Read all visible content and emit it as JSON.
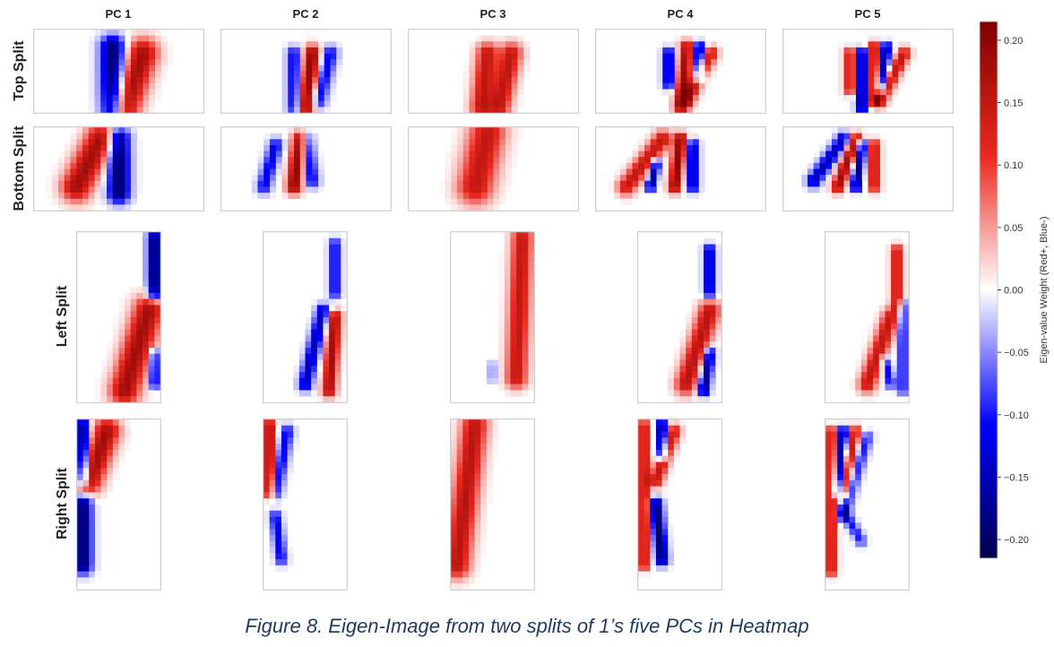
{
  "chart_data": {
    "type": "heatmap",
    "columns": [
      "PC 1",
      "PC 2",
      "PC 3",
      "PC 4",
      "PC 5"
    ],
    "rows": [
      "Top Split",
      "Bottom Split",
      "Left Split",
      "Right Split"
    ],
    "colorbar": {
      "label": "Eigen-value Weight (Red+, Blue-)",
      "range": [
        -0.215,
        0.215
      ],
      "ticks": [
        0.2,
        0.15,
        0.1,
        0.05,
        0.0,
        -0.05,
        -0.1,
        -0.15,
        -0.2
      ],
      "tick_labels": [
        "0.20",
        "0.15",
        "0.10",
        "0.05",
        "0.00",
        "−0.05",
        "−0.10",
        "−0.15",
        "−0.20"
      ],
      "colormap": "seismic",
      "colors": {
        "neg_end": "#00004d",
        "neg": "#0000ff",
        "zero": "#ffffff",
        "pos": "#ff0000",
        "pos_end": "#800000"
      }
    },
    "grid_sizes": {
      "Top Split": [
        28,
        14
      ],
      "Bottom Split": [
        28,
        14
      ],
      "Left Split": [
        14,
        28
      ],
      "Right Split": [
        14,
        28
      ]
    },
    "approx_strokes_note_units": "image pixel indices [x1,y1,x2,y2,weight,width]",
    "panels": [
      [
        [
          [
            13,
            3,
            13,
            13,
            -0.2,
            2
          ],
          [
            18,
            4,
            15,
            13,
            0.18,
            2.5
          ]
        ],
        [
          [
            12,
            4,
            12,
            13,
            -0.12,
            1.2
          ],
          [
            15,
            4,
            14,
            13,
            0.2,
            1.4
          ],
          [
            18,
            4,
            16,
            12,
            -0.12,
            1.3
          ]
        ],
        [
          [
            13,
            4,
            12,
            13,
            0.15,
            1.8
          ],
          [
            17,
            4,
            15,
            13,
            0.15,
            1.8
          ]
        ],
        [
          [
            12,
            4,
            12,
            9,
            -0.15,
            1
          ],
          [
            15,
            3,
            14,
            13,
            0.18,
            1.2
          ],
          [
            17,
            3,
            17,
            8,
            -0.18,
            1
          ],
          [
            19,
            4,
            15,
            12,
            0.15,
            1.2
          ]
        ],
        [
          [
            11,
            4,
            11,
            10,
            0.15,
            1
          ],
          [
            13,
            4,
            13,
            13,
            -0.18,
            1
          ],
          [
            15,
            3,
            15,
            12,
            0.18,
            1
          ],
          [
            17,
            3,
            16,
            10,
            -0.18,
            0.9
          ],
          [
            20,
            4,
            16,
            12,
            0.15,
            1.1
          ]
        ]
      ],
      [
        [
          [
            11,
            2,
            7,
            10,
            0.18,
            2.5
          ],
          [
            14,
            2,
            14,
            11,
            -0.2,
            1.8
          ]
        ],
        [
          [
            9,
            3,
            7,
            10,
            -0.12,
            1.2
          ],
          [
            13,
            2,
            12,
            10,
            0.2,
            1.3
          ],
          [
            14,
            2,
            15,
            9,
            -0.12,
            1.2
          ]
        ],
        [
          [
            13,
            1,
            11,
            10,
            0.15,
            3
          ]
        ],
        [
          [
            11,
            2,
            5,
            10,
            0.15,
            1.5
          ],
          [
            10,
            6,
            9,
            10,
            -0.18,
            0.8
          ],
          [
            14,
            2,
            13,
            10,
            0.2,
            1.1
          ],
          [
            16,
            3,
            16,
            10,
            -0.15,
            1
          ]
        ],
        [
          [
            10,
            2,
            5,
            9,
            -0.15,
            1.2
          ],
          [
            12,
            2,
            9,
            10,
            0.18,
            1.1
          ],
          [
            13,
            3,
            12,
            10,
            -0.18,
            0.9
          ],
          [
            15,
            3,
            15,
            10,
            0.15,
            1
          ]
        ]
      ],
      [
        [
          [
            13,
            1,
            13,
            10,
            -0.2,
            1.2
          ],
          [
            12,
            13,
            8,
            26,
            0.18,
            2.5
          ],
          [
            13,
            20,
            13,
            25,
            -0.15,
            0.8
          ]
        ],
        [
          [
            12,
            2,
            12,
            10,
            -0.12,
            1
          ],
          [
            10,
            13,
            7,
            25,
            -0.15,
            1.2
          ],
          [
            12,
            14,
            11,
            26,
            0.18,
            1.2
          ]
        ],
        [
          [
            12,
            1,
            11,
            24,
            0.15,
            1.8
          ],
          [
            7,
            22,
            7,
            24,
            -0.05,
            0.8
          ]
        ],
        [
          [
            12,
            3,
            12,
            10,
            -0.15,
            1
          ],
          [
            12,
            13,
            8,
            25,
            0.16,
            1.8
          ],
          [
            12,
            20,
            11,
            26,
            -0.18,
            1
          ]
        ],
        [
          [
            12,
            3,
            12,
            12,
            0.15,
            1
          ],
          [
            13,
            12,
            13,
            26,
            -0.12,
            0.8
          ],
          [
            11,
            14,
            7,
            25,
            0.15,
            1.5
          ],
          [
            10,
            21,
            11,
            25,
            -0.12,
            0.8
          ]
        ]
      ],
      [
        [
          [
            1,
            1,
            1,
            10,
            -0.2,
            1
          ],
          [
            5,
            2,
            2,
            10,
            0.18,
            2.2
          ],
          [
            1,
            14,
            1,
            24,
            -0.2,
            1.5
          ]
        ],
        [
          [
            1,
            1,
            1,
            12,
            0.18,
            1
          ],
          [
            4,
            2,
            2,
            12,
            -0.12,
            1.1
          ],
          [
            2,
            16,
            3,
            23,
            -0.12,
            1
          ]
        ],
        [
          [
            4,
            1,
            1,
            24,
            0.16,
            2.2
          ]
        ],
        [
          [
            1,
            1,
            1,
            24,
            0.16,
            0.9
          ],
          [
            4,
            1,
            4,
            6,
            -0.2,
            0.9
          ],
          [
            6,
            2,
            3,
            10,
            0.15,
            1.2
          ],
          [
            3,
            14,
            4,
            23,
            -0.2,
            1.1
          ]
        ],
        [
          [
            1,
            2,
            1,
            25,
            0.16,
            0.9
          ],
          [
            3,
            2,
            2,
            12,
            -0.18,
            0.9
          ],
          [
            5,
            2,
            3,
            12,
            0.15,
            1
          ],
          [
            7,
            3,
            3,
            16,
            -0.1,
            1
          ],
          [
            3,
            15,
            6,
            20,
            -0.1,
            0.9
          ]
        ]
      ]
    ]
  },
  "caption": "Figure 8. Eigen-Image from two splits of 1’s five PCs in Heatmap"
}
